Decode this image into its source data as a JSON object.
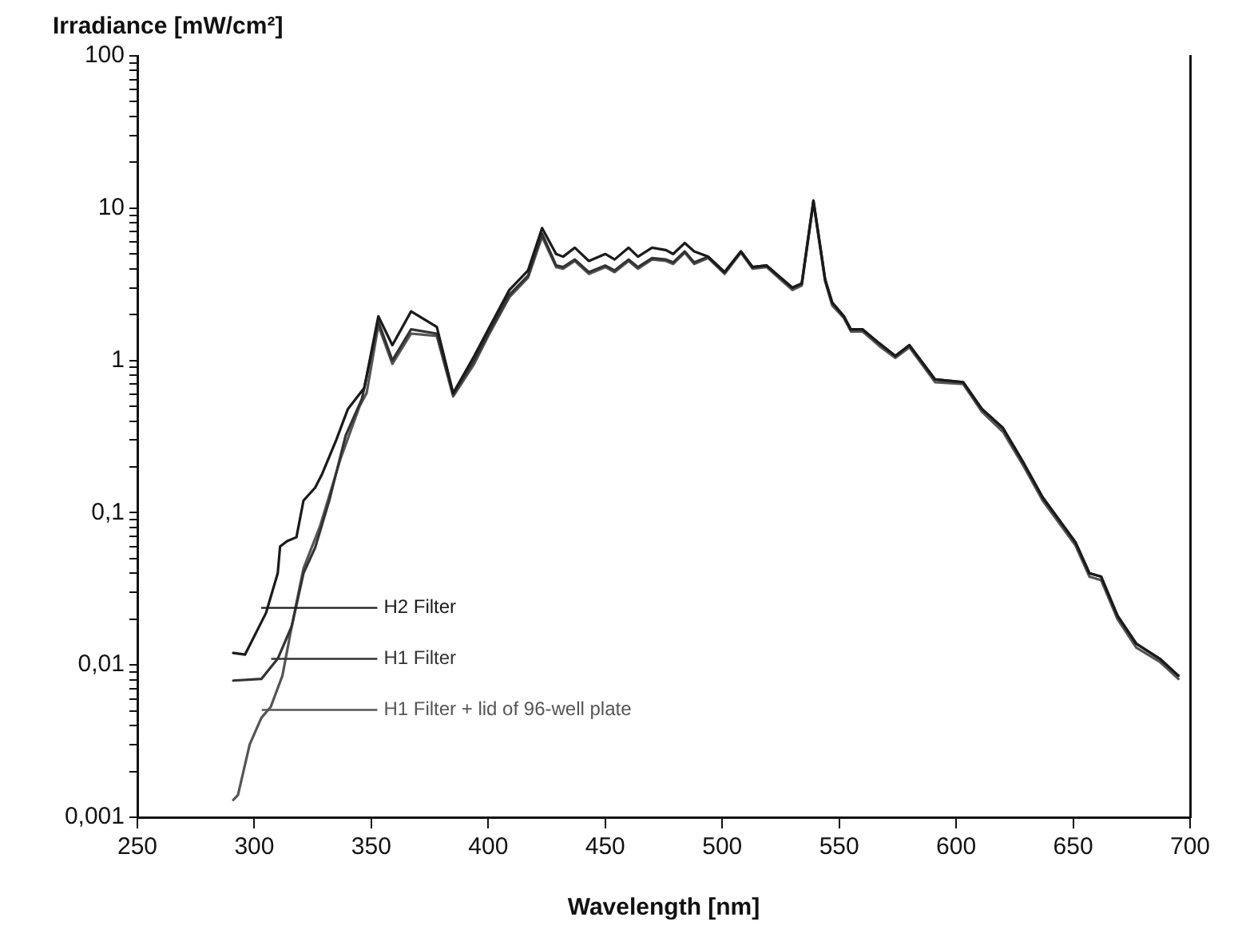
{
  "chart_data": {
    "type": "line",
    "ylabel": "Irradiance [mW/cm²]",
    "xlabel": "Wavelength [nm]",
    "log": "y",
    "grid": false,
    "legend": false,
    "marker": "none",
    "line_style": "solid",
    "xlim": [
      250,
      700
    ],
    "xticks": [
      250,
      300,
      350,
      400,
      450,
      500,
      550,
      600,
      650,
      700
    ],
    "ylim": [
      0.001,
      100
    ],
    "yticks": [
      {
        "value": 0.001,
        "label": "0,001"
      },
      {
        "value": 0.002,
        "label": null
      },
      {
        "value": 0.003,
        "label": null
      },
      {
        "value": 0.004,
        "label": null
      },
      {
        "value": 0.005,
        "label": null
      },
      {
        "value": 0.006,
        "label": null
      },
      {
        "value": 0.007,
        "label": null
      },
      {
        "value": 0.008,
        "label": null
      },
      {
        "value": 0.009,
        "label": null
      },
      {
        "value": 0.01,
        "label": "0,01"
      },
      {
        "value": 0.02,
        "label": null
      },
      {
        "value": 0.03,
        "label": null
      },
      {
        "value": 0.04,
        "label": null
      },
      {
        "value": 0.05,
        "label": null
      },
      {
        "value": 0.06,
        "label": null
      },
      {
        "value": 0.07,
        "label": null
      },
      {
        "value": 0.08,
        "label": null
      },
      {
        "value": 0.09,
        "label": null
      },
      {
        "value": 0.1,
        "label": "0,1"
      },
      {
        "value": 0.2,
        "label": null
      },
      {
        "value": 0.3,
        "label": null
      },
      {
        "value": 0.4,
        "label": null
      },
      {
        "value": 0.5,
        "label": null
      },
      {
        "value": 0.6,
        "label": null
      },
      {
        "value": 0.7,
        "label": null
      },
      {
        "value": 0.8,
        "label": null
      },
      {
        "value": 0.9,
        "label": null
      },
      {
        "value": 1,
        "label": "1"
      },
      {
        "value": 2,
        "label": null
      },
      {
        "value": 3,
        "label": null
      },
      {
        "value": 4,
        "label": null
      },
      {
        "value": 5,
        "label": null
      },
      {
        "value": 6,
        "label": null
      },
      {
        "value": 7,
        "label": null
      },
      {
        "value": 8,
        "label": null
      },
      {
        "value": 9,
        "label": null
      },
      {
        "value": 10,
        "label": "10"
      },
      {
        "value": 20,
        "label": null
      },
      {
        "value": 30,
        "label": null
      },
      {
        "value": 40,
        "label": null
      },
      {
        "value": 50,
        "label": null
      },
      {
        "value": 60,
        "label": null
      },
      {
        "value": 70,
        "label": null
      },
      {
        "value": 80,
        "label": null
      },
      {
        "value": 90,
        "label": null
      },
      {
        "value": 100,
        "label": "100"
      }
    ],
    "series": [
      {
        "name": "H2 Filter",
        "color": "#1a1a1a",
        "x": [
          291,
          296,
          305,
          310,
          311,
          314,
          318,
          321,
          326,
          329,
          335,
          340,
          347,
          353,
          359,
          367,
          378,
          385,
          394,
          400,
          409,
          417,
          423,
          429,
          432,
          437,
          443,
          450,
          454,
          460,
          464,
          470,
          476,
          479,
          484,
          488,
          494,
          501,
          508,
          513,
          519,
          524,
          530,
          534,
          539,
          544,
          547,
          552,
          555,
          560,
          567,
          574,
          580,
          591,
          603,
          611,
          620,
          629,
          637,
          651,
          657,
          662,
          669,
          677,
          687,
          695
        ],
        "values": [
          0.012,
          0.0117,
          0.022,
          0.04,
          0.06,
          0.065,
          0.069,
          0.12,
          0.146,
          0.18,
          0.3,
          0.48,
          0.66,
          1.95,
          1.26,
          2.1,
          1.66,
          0.61,
          1.07,
          1.6,
          2.9,
          3.9,
          7.4,
          5.0,
          4.8,
          5.5,
          4.5,
          5.0,
          4.6,
          5.5,
          4.8,
          5.5,
          5.3,
          5.0,
          5.9,
          5.2,
          4.8,
          3.8,
          5.2,
          4.1,
          4.2,
          3.6,
          3.0,
          3.2,
          11.2,
          3.4,
          2.4,
          1.95,
          1.6,
          1.6,
          1.3,
          1.07,
          1.26,
          0.75,
          0.72,
          0.48,
          0.36,
          0.21,
          0.126,
          0.064,
          0.04,
          0.038,
          0.021,
          0.0138,
          0.011,
          0.0085
        ]
      },
      {
        "name": "H1 Filter",
        "color": "#333333",
        "x": [
          291,
          303,
          310,
          316,
          321,
          326,
          332,
          339,
          346,
          353,
          359,
          367,
          378,
          385,
          394,
          400,
          409,
          417,
          423,
          429,
          432,
          437,
          443,
          450,
          454,
          460,
          464,
          470,
          476,
          479,
          484,
          488,
          494,
          501,
          508,
          513,
          519,
          524,
          530,
          534,
          539,
          544,
          547,
          552,
          555,
          560,
          567,
          574,
          580,
          591,
          603,
          611,
          620,
          629,
          637,
          651,
          657,
          662,
          669,
          677,
          687,
          695
        ],
        "values": [
          0.0079,
          0.0081,
          0.011,
          0.018,
          0.04,
          0.059,
          0.12,
          0.32,
          0.56,
          1.8,
          1.0,
          1.6,
          1.5,
          0.6,
          1.0,
          1.5,
          2.7,
          3.6,
          6.8,
          4.2,
          4.1,
          4.6,
          3.8,
          4.2,
          3.9,
          4.6,
          4.1,
          4.7,
          4.6,
          4.4,
          5.2,
          4.4,
          4.8,
          3.8,
          5.2,
          4.1,
          4.2,
          3.6,
          3.0,
          3.2,
          11.2,
          3.4,
          2.4,
          1.95,
          1.6,
          1.6,
          1.3,
          1.07,
          1.26,
          0.75,
          0.72,
          0.48,
          0.36,
          0.21,
          0.126,
          0.064,
          0.04,
          0.038,
          0.021,
          0.0138,
          0.011,
          0.0085
        ]
      },
      {
        "name": "H1 Filter + lid of 96-well plate",
        "color": "#555555",
        "x": [
          291,
          293,
          298,
          303,
          307,
          312,
          316,
          321,
          328,
          337,
          345,
          348,
          353,
          359,
          367,
          378,
          385,
          394,
          400,
          409,
          417,
          423,
          429,
          432,
          437,
          443,
          450,
          454,
          460,
          464,
          470,
          476,
          479,
          484,
          488,
          494,
          501,
          508,
          513,
          519,
          524,
          530,
          534,
          539,
          544,
          547,
          552,
          555,
          560,
          567,
          574,
          580,
          591,
          603,
          611,
          620,
          629,
          637,
          651,
          657,
          662,
          669,
          677,
          687,
          695
        ],
        "values": [
          0.0013,
          0.0014,
          0.003,
          0.0045,
          0.0053,
          0.0085,
          0.018,
          0.043,
          0.081,
          0.23,
          0.5,
          0.61,
          1.7,
          0.95,
          1.5,
          1.45,
          0.58,
          0.95,
          1.45,
          2.6,
          3.5,
          6.5,
          4.1,
          4.0,
          4.5,
          3.7,
          4.1,
          3.8,
          4.5,
          4.0,
          4.6,
          4.5,
          4.3,
          5.1,
          4.3,
          4.7,
          3.7,
          5.1,
          4.0,
          4.1,
          3.5,
          2.9,
          3.1,
          10.9,
          3.3,
          2.3,
          1.9,
          1.55,
          1.55,
          1.25,
          1.04,
          1.22,
          0.72,
          0.7,
          0.46,
          0.34,
          0.2,
          0.12,
          0.061,
          0.038,
          0.036,
          0.02,
          0.013,
          0.0105,
          0.0081
        ]
      }
    ]
  }
}
